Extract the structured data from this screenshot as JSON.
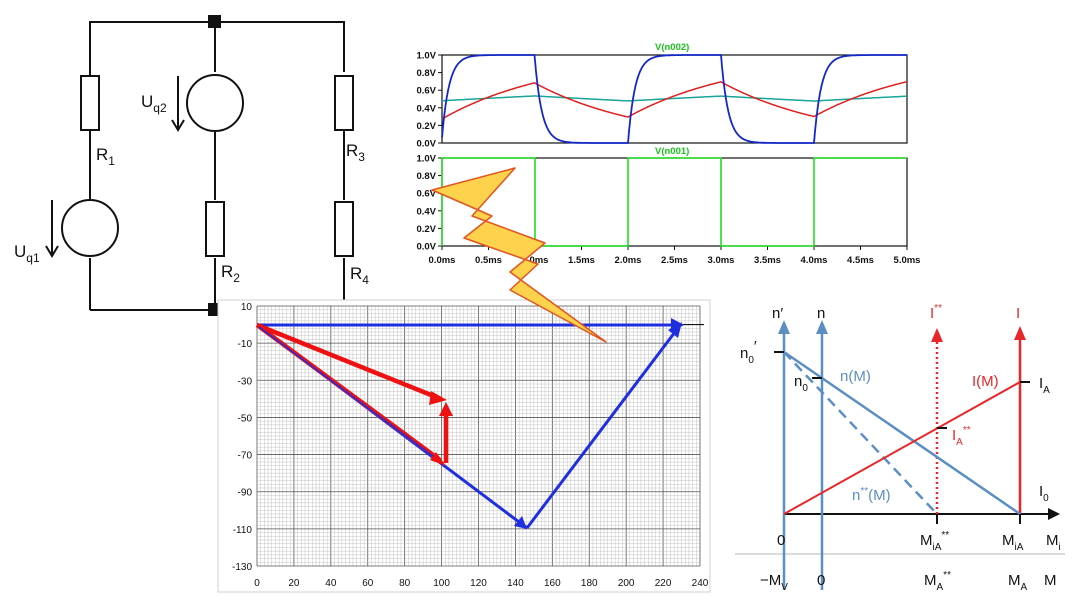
{
  "schematic": {
    "r1": "R",
    "r1_sub": "1",
    "r2": "R",
    "r2_sub": "2",
    "r3": "R",
    "r3_sub": "3",
    "r4": "R",
    "r4_sub": "4",
    "uq1": "U",
    "uq1_sub": "q1",
    "uq2": "U",
    "uq2_sub": "q2"
  },
  "oscilloscope": {
    "top_title": "V(n002)",
    "bottom_title": "V(n001)",
    "y_ticks": [
      "1.0V",
      "0.8V",
      "0.6V",
      "0.4V",
      "0.2V",
      "0.0V"
    ],
    "x_ticks": [
      "0.0ms",
      "0.5ms",
      "1.0ms",
      "1.5ms",
      "2.0ms",
      "2.5ms",
      "3.0ms",
      "3.5ms",
      "4.0ms",
      "4.5ms",
      "5.0ms"
    ],
    "colors": {
      "square": "#22dd22",
      "cap_fast": "#1428c8",
      "cap_mid": "#e01e1e",
      "cap_slow": "#1aa59a"
    }
  },
  "phasor_plot": {
    "y_ticks": [
      "10",
      "-10",
      "-30",
      "-50",
      "-70",
      "-90",
      "-110",
      "-130"
    ],
    "x_ticks": [
      "0",
      "20",
      "40",
      "60",
      "80",
      "100",
      "120",
      "140",
      "160",
      "180",
      "200",
      "220",
      "240"
    ],
    "colors": {
      "blue": "#1f2fe0",
      "red": "#ee1111",
      "grid": "#8c8c8c"
    }
  },
  "motor_diagram": {
    "n_prime": "n′",
    "n": "n",
    "i_star": "I",
    "i_star_sup": "**",
    "i": "I",
    "n0_prime": "n",
    "n0_prime_sub": "0",
    "n0_prime_mark": "′",
    "n0": "n",
    "n0_sub": "0",
    "nM": "n(M)",
    "IM": "I(M)",
    "IA": "I",
    "IA_sub": "A",
    "IA_star": "I",
    "IA_star_sub": "A",
    "IA_star_sup": "**",
    "n_star_M": "n",
    "n_star_M_sup": "**",
    "n_star_M_rest": "(M)",
    "I0": "I",
    "I0_sub": "0",
    "zero_top": "0",
    "MiA_star": "M",
    "MiA_star_sub": "iA",
    "MiA_star_sup": "**",
    "MiA": "M",
    "MiA_sub": "iA",
    "Mi": "M",
    "Mi_sub": "i",
    "minus_Mv": "−M",
    "minus_Mv_sub": "V",
    "zero_bottom": "0",
    "MA_star": "M",
    "MA_star_sub": "A",
    "MA_star_sup": "**",
    "MA": "M",
    "MA_sub": "A",
    "M": "M",
    "colors": {
      "blue": "#5b8fc4",
      "red": "#e8272a"
    }
  },
  "lightning": {
    "fill": "#ffd24d",
    "stroke": "#e0551f"
  }
}
